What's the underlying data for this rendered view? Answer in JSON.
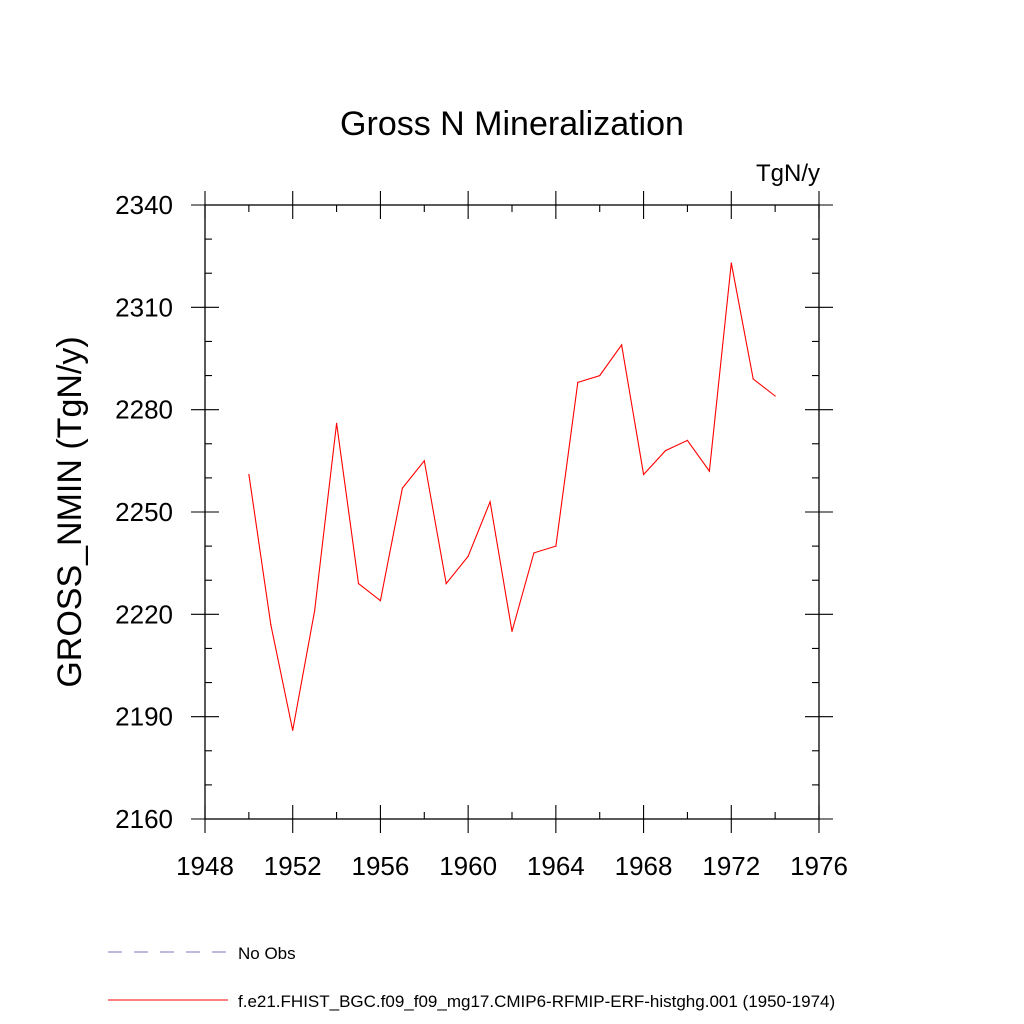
{
  "chart_data": {
    "type": "line",
    "title": "Gross N Mineralization",
    "units_label": "TgN/y",
    "ylabel": "GROSS_NMIN  (TgN/y)",
    "xlabel": "",
    "xlim": [
      1948,
      1976
    ],
    "ylim": [
      2160,
      2340
    ],
    "x_major_ticks": [
      1948,
      1952,
      1956,
      1960,
      1964,
      1968,
      1972,
      1976
    ],
    "x_minor_step": 2,
    "y_major_ticks": [
      2160,
      2190,
      2220,
      2250,
      2280,
      2310,
      2340
    ],
    "y_minor_step": 10,
    "series": [
      {
        "name": "f.e21.FHIST_BGC.f09_f09_mg17.CMIP6-RFMIP-ERF-histghg.001 (1950-1974)",
        "color": "#ff0000",
        "dash": "solid",
        "x": [
          1950,
          1951,
          1952,
          1953,
          1954,
          1955,
          1956,
          1957,
          1958,
          1959,
          1960,
          1961,
          1962,
          1963,
          1964,
          1965,
          1966,
          1967,
          1968,
          1969,
          1970,
          1971,
          1972,
          1973,
          1974
        ],
        "y": [
          2261,
          2217,
          2186,
          2221,
          2276,
          2229,
          2224,
          2257,
          2265,
          2229,
          2237,
          2253,
          2215,
          2238,
          2240,
          2288,
          2290,
          2299,
          2261,
          2268,
          2271,
          2262,
          2323,
          2289,
          2284
        ]
      }
    ],
    "legend": [
      {
        "label": "No Obs",
        "color": "#8070c0",
        "dash": "dashed"
      },
      {
        "label": "f.e21.FHIST_BGC.f09_f09_mg17.CMIP6-RFMIP-ERF-histghg.001 (1950-1974)",
        "color": "#ff0000",
        "dash": "solid"
      }
    ],
    "legend_position": "bottom-left"
  }
}
